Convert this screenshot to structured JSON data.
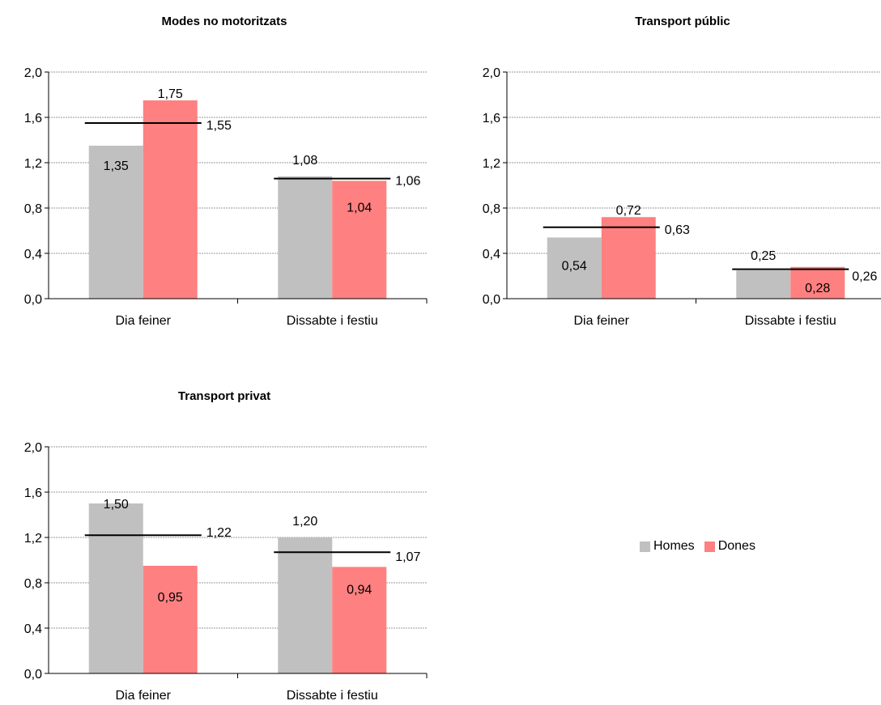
{
  "chart_data": [
    {
      "type": "bar",
      "title": "Modes no motoritzats",
      "categories": [
        "Dia feiner",
        "Dissabte i festiu"
      ],
      "series": [
        {
          "name": "Homes",
          "values": [
            1.35,
            1.08
          ],
          "labels": [
            "1,35",
            "1,08"
          ]
        },
        {
          "name": "Dones",
          "values": [
            1.75,
            1.04
          ],
          "labels": [
            "1,75",
            "1,04"
          ]
        }
      ],
      "average": {
        "values": [
          1.55,
          1.06
        ],
        "labels": [
          "1,55",
          "1,06"
        ]
      },
      "ylim": [
        0,
        2.0
      ],
      "yticks": [
        "0,0",
        "0,4",
        "0,8",
        "1,2",
        "1,6",
        "2,0"
      ],
      "grid": true
    },
    {
      "type": "bar",
      "title": "Transport públic",
      "categories": [
        "Dia feiner",
        "Dissabte i festiu"
      ],
      "series": [
        {
          "name": "Homes",
          "values": [
            0.54,
            0.25
          ],
          "labels": [
            "0,54",
            "0,25"
          ]
        },
        {
          "name": "Dones",
          "values": [
            0.72,
            0.28
          ],
          "labels": [
            "0,72",
            "0,28"
          ]
        }
      ],
      "average": {
        "values": [
          0.63,
          0.26
        ],
        "labels": [
          "0,63",
          "0,26"
        ]
      },
      "ylim": [
        0,
        2.0
      ],
      "yticks": [
        "0,0",
        "0,4",
        "0,8",
        "1,2",
        "1,6",
        "2,0"
      ],
      "grid": true
    },
    {
      "type": "bar",
      "title": "Transport privat",
      "categories": [
        "Dia feiner",
        "Dissabte i festiu"
      ],
      "series": [
        {
          "name": "Homes",
          "values": [
            1.5,
            1.2
          ],
          "labels": [
            "1,50",
            "1,20"
          ]
        },
        {
          "name": "Dones",
          "values": [
            0.95,
            0.94
          ],
          "labels": [
            "0,95",
            "0,94"
          ]
        }
      ],
      "average": {
        "values": [
          1.22,
          1.07
        ],
        "labels": [
          "1,22",
          "1,07"
        ]
      },
      "ylim": [
        0,
        2.0
      ],
      "yticks": [
        "0,0",
        "0,4",
        "0,8",
        "1,2",
        "1,6",
        "2,0"
      ],
      "grid": true
    }
  ],
  "legend": {
    "placement": "right",
    "items": [
      {
        "name": "Homes",
        "color": "#c0c0c0"
      },
      {
        "name": "Dones",
        "color": "#ff8080"
      }
    ]
  },
  "colors": {
    "homes": "#c0c0c0",
    "dones": "#ff8080",
    "average_line": "#000000",
    "grid": "#999999"
  }
}
